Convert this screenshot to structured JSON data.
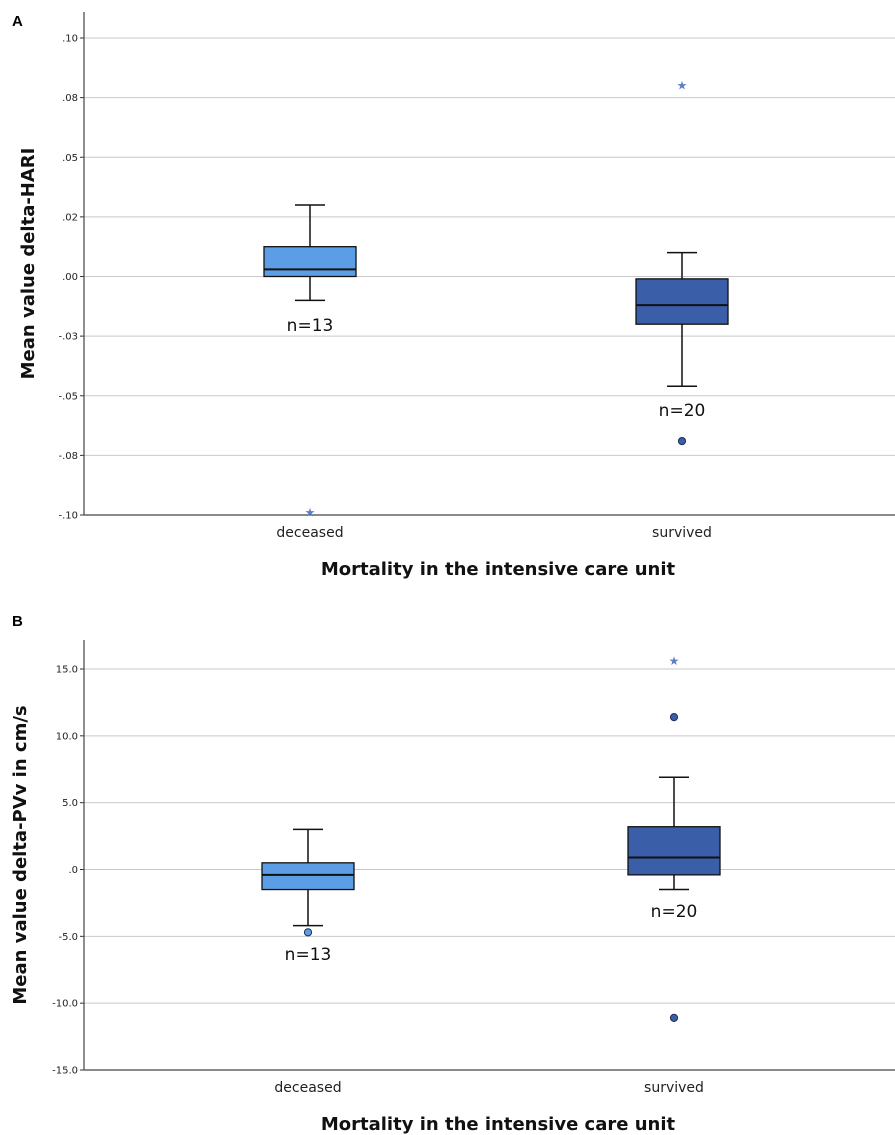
{
  "chart_data": [
    {
      "panel": "A",
      "type": "box",
      "ylabel": "Mean value delta-HARI",
      "xlabel": "Mortality in the intensive care unit",
      "yticks": [
        0.1,
        0.075,
        0.05,
        0.025,
        0.0,
        -0.025,
        -0.05,
        -0.075,
        -0.1
      ],
      "ytick_labels": [
        ".10",
        ".08",
        ".05",
        ".02",
        ".00",
        "-.03",
        "-.05",
        "-.08",
        "-.10"
      ],
      "ylim": [
        -0.1,
        0.11
      ],
      "grid": true,
      "categories": [
        "deceased",
        "survived"
      ],
      "boxes": [
        {
          "category": "deceased",
          "whisker_low": -0.01,
          "q1": 0.0,
          "median": 0.003,
          "q3": 0.0125,
          "whisker_high": 0.03,
          "n_label": "n=13",
          "color": "#5b9ee6",
          "outliers": [
            {
              "value": -0.099,
              "marker": "star"
            }
          ]
        },
        {
          "category": "survived",
          "whisker_low": -0.046,
          "q1": -0.02,
          "median": -0.012,
          "q3": -0.001,
          "whisker_high": 0.01,
          "n_label": "n=20",
          "color": "#3a5ea8",
          "outliers": [
            {
              "value": 0.08,
              "marker": "star"
            },
            {
              "value": -0.069,
              "marker": "circle"
            }
          ]
        }
      ]
    },
    {
      "panel": "B",
      "type": "box",
      "ylabel": "Mean value delta-PVv in cm/s",
      "xlabel": "Mortality in the intensive care unit",
      "yticks": [
        15,
        10,
        5,
        0,
        -5,
        -10,
        -15
      ],
      "ytick_labels": [
        "15.0",
        "10.0",
        "5.0",
        ".0",
        "-5.0",
        "-10.0",
        "-15.0"
      ],
      "ylim": [
        -15,
        17.3
      ],
      "grid": true,
      "categories": [
        "deceased",
        "survived"
      ],
      "boxes": [
        {
          "category": "deceased",
          "whisker_low": -4.2,
          "q1": -1.5,
          "median": -0.4,
          "q3": 0.5,
          "whisker_high": 3.0,
          "n_label": "n=13",
          "color": "#5b9ee6",
          "outliers": [
            {
              "value": -4.7,
              "marker": "circle"
            }
          ]
        },
        {
          "category": "survived",
          "whisker_low": -1.5,
          "q1": -0.4,
          "median": 0.9,
          "q3": 3.2,
          "whisker_high": 6.9,
          "n_label": "n=20",
          "color": "#3a5ea8",
          "outliers": [
            {
              "value": 15.6,
              "marker": "star"
            },
            {
              "value": 11.4,
              "marker": "circle"
            },
            {
              "value": -11.1,
              "marker": "circle"
            }
          ]
        }
      ]
    }
  ]
}
